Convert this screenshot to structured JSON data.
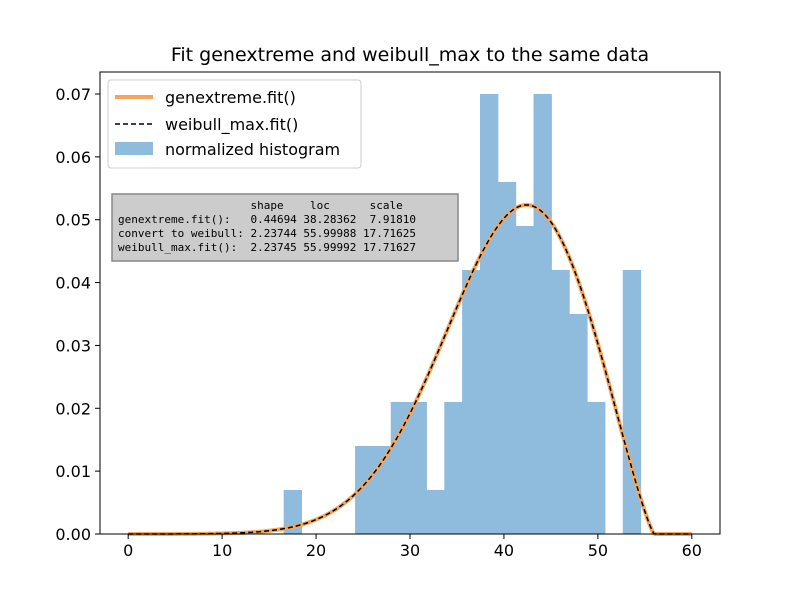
{
  "chart_data": {
    "type": "bar",
    "title": "Fit genextreme and weibull_max to the same data",
    "xlabel": "",
    "ylabel": "",
    "xlim": [
      -3,
      63
    ],
    "ylim": [
      0,
      0.0735
    ],
    "xticks": [
      0,
      10,
      20,
      30,
      40,
      50,
      60
    ],
    "yticks": [
      0.0,
      0.01,
      0.02,
      0.03,
      0.04,
      0.05,
      0.06,
      0.07
    ],
    "ytick_labels": [
      "0.00",
      "0.01",
      "0.02",
      "0.03",
      "0.04",
      "0.05",
      "0.06",
      "0.07"
    ],
    "histogram": {
      "name": "normalized histogram",
      "color": "#8fbcdc",
      "bin_edges": [
        16.55,
        18.45,
        20.35,
        22.25,
        24.15,
        26.05,
        27.95,
        29.85,
        31.75,
        33.65,
        35.55,
        37.45,
        39.35,
        41.25,
        43.15,
        45.05,
        46.95,
        48.85,
        50.75,
        52.65,
        54.55
      ],
      "densities": [
        0.007,
        0.0,
        0.0,
        0.0,
        0.014,
        0.014,
        0.021,
        0.021,
        0.007,
        0.021,
        0.042,
        0.07,
        0.056,
        0.049,
        0.07,
        0.042,
        0.035,
        0.021,
        0.0,
        0.042
      ]
    },
    "series": [
      {
        "name": "genextreme.fit()",
        "color": "#f5a55c",
        "style": "solid"
      },
      {
        "name": "weibull_max.fit()",
        "color": "#000000",
        "style": "dashed"
      }
    ],
    "pdf_params": {
      "c": 2.23744,
      "loc": 55.99988,
      "scale": 17.71625,
      "x_range": [
        0,
        60
      ]
    },
    "legend_position": "upper-left",
    "param_table": {
      "header": "                    shape    loc      scale",
      "rows": [
        "genextreme.fit():   0.44694 38.28362  7.91810",
        "convert to weibull: 2.23744 55.99988 17.71625",
        "weibull_max.fit():  2.23745 55.99992 17.71627"
      ]
    }
  }
}
